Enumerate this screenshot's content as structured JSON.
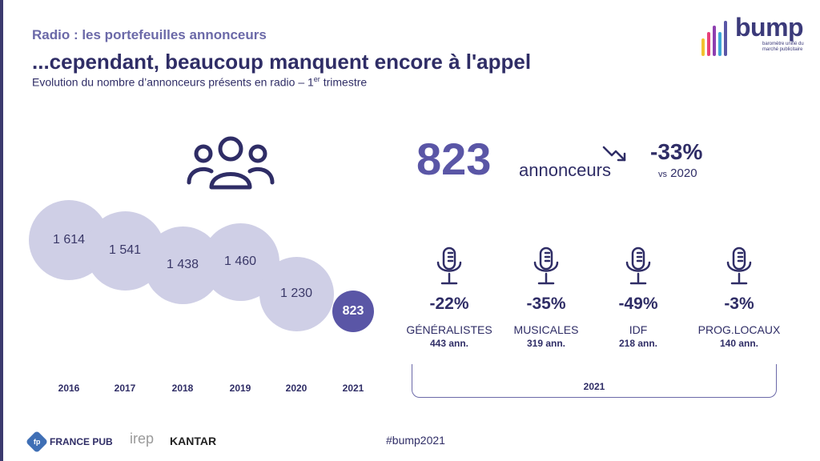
{
  "header": {
    "label": "Radio : les portefeuilles annonceurs",
    "title": "...cependant, beaucoup manquent encore à l'appel",
    "subtitle_prefix": "Evolution du nombre d’annonceurs présents en radio – 1",
    "subtitle_sup": "er",
    "subtitle_suffix": " trimestre"
  },
  "logo": {
    "word": "bump",
    "tagline": "baromètre unifié du marché publicitaire",
    "bar_colors": [
      "#f2c230",
      "#e8407a",
      "#8e3fb0",
      "#3fa6d8",
      "#5a56a6"
    ]
  },
  "icons": {
    "people": "people-group-icon",
    "trend": "trend-down-icon",
    "mic": "microphone-icon"
  },
  "chart_data": {
    "type": "bubble",
    "categories": [
      "2016",
      "2017",
      "2018",
      "2019",
      "2020",
      "2021"
    ],
    "values": [
      1614,
      1541,
      1438,
      1460,
      1230,
      823
    ],
    "labels": [
      "1 614",
      "1 541",
      "1 438",
      "1 460",
      "1 230",
      "823"
    ],
    "highlight_index": 5,
    "colors": {
      "default": "#cfcfe6",
      "highlight": "#5a56a6"
    }
  },
  "summary": {
    "count": "823",
    "unit": "annonceurs",
    "change": "-33%",
    "vs_label": "vs",
    "vs_year": "2020"
  },
  "categories": [
    {
      "pct": "-22%",
      "name": "GÉNÉRALISTES",
      "count": "443 ann."
    },
    {
      "pct": "-35%",
      "name": "MUSICALES",
      "count": "319 ann."
    },
    {
      "pct": "-49%",
      "name": "IDF",
      "count": "218 ann."
    },
    {
      "pct": "-3%",
      "name": "PROG.LOCAUX",
      "count": "140 ann."
    }
  ],
  "categories_year": "2021",
  "footer": {
    "francepub": "FRANCE PUB",
    "francepub_mark": "fp",
    "irep": "irep",
    "kantar": "KANTAR",
    "hashtag": "#bump2021"
  }
}
